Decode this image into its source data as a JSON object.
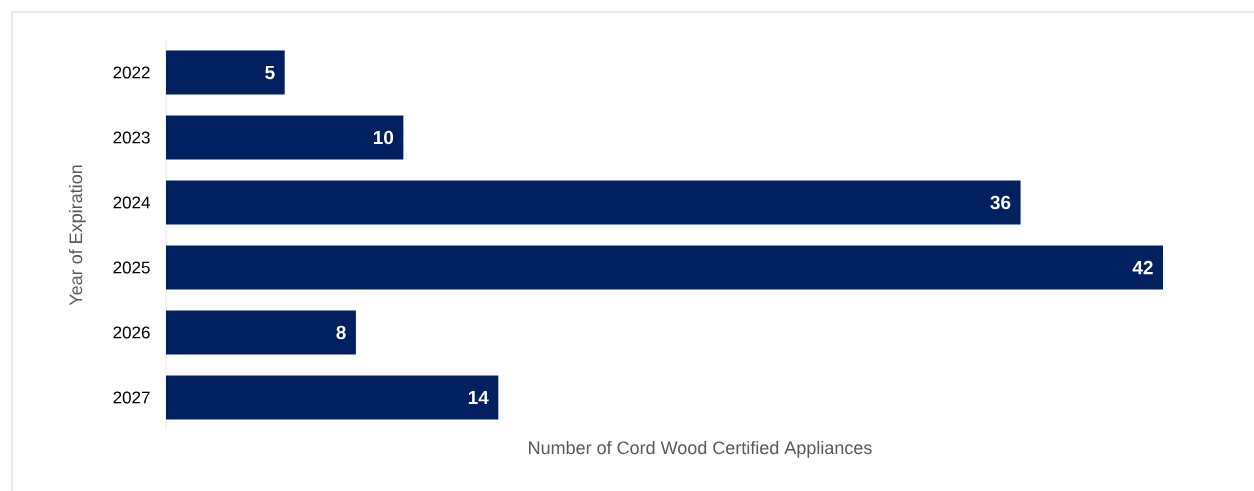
{
  "chart_data": {
    "type": "bar",
    "orientation": "horizontal",
    "categories": [
      "2022",
      "2023",
      "2024",
      "2025",
      "2026",
      "2027"
    ],
    "values": [
      5,
      10,
      36,
      42,
      8,
      14
    ],
    "color": "#002060",
    "data_labels": true,
    "xlabel": "Number of Cord Wood Certified Appliances",
    "ylabel": "Year of Expiration"
  }
}
